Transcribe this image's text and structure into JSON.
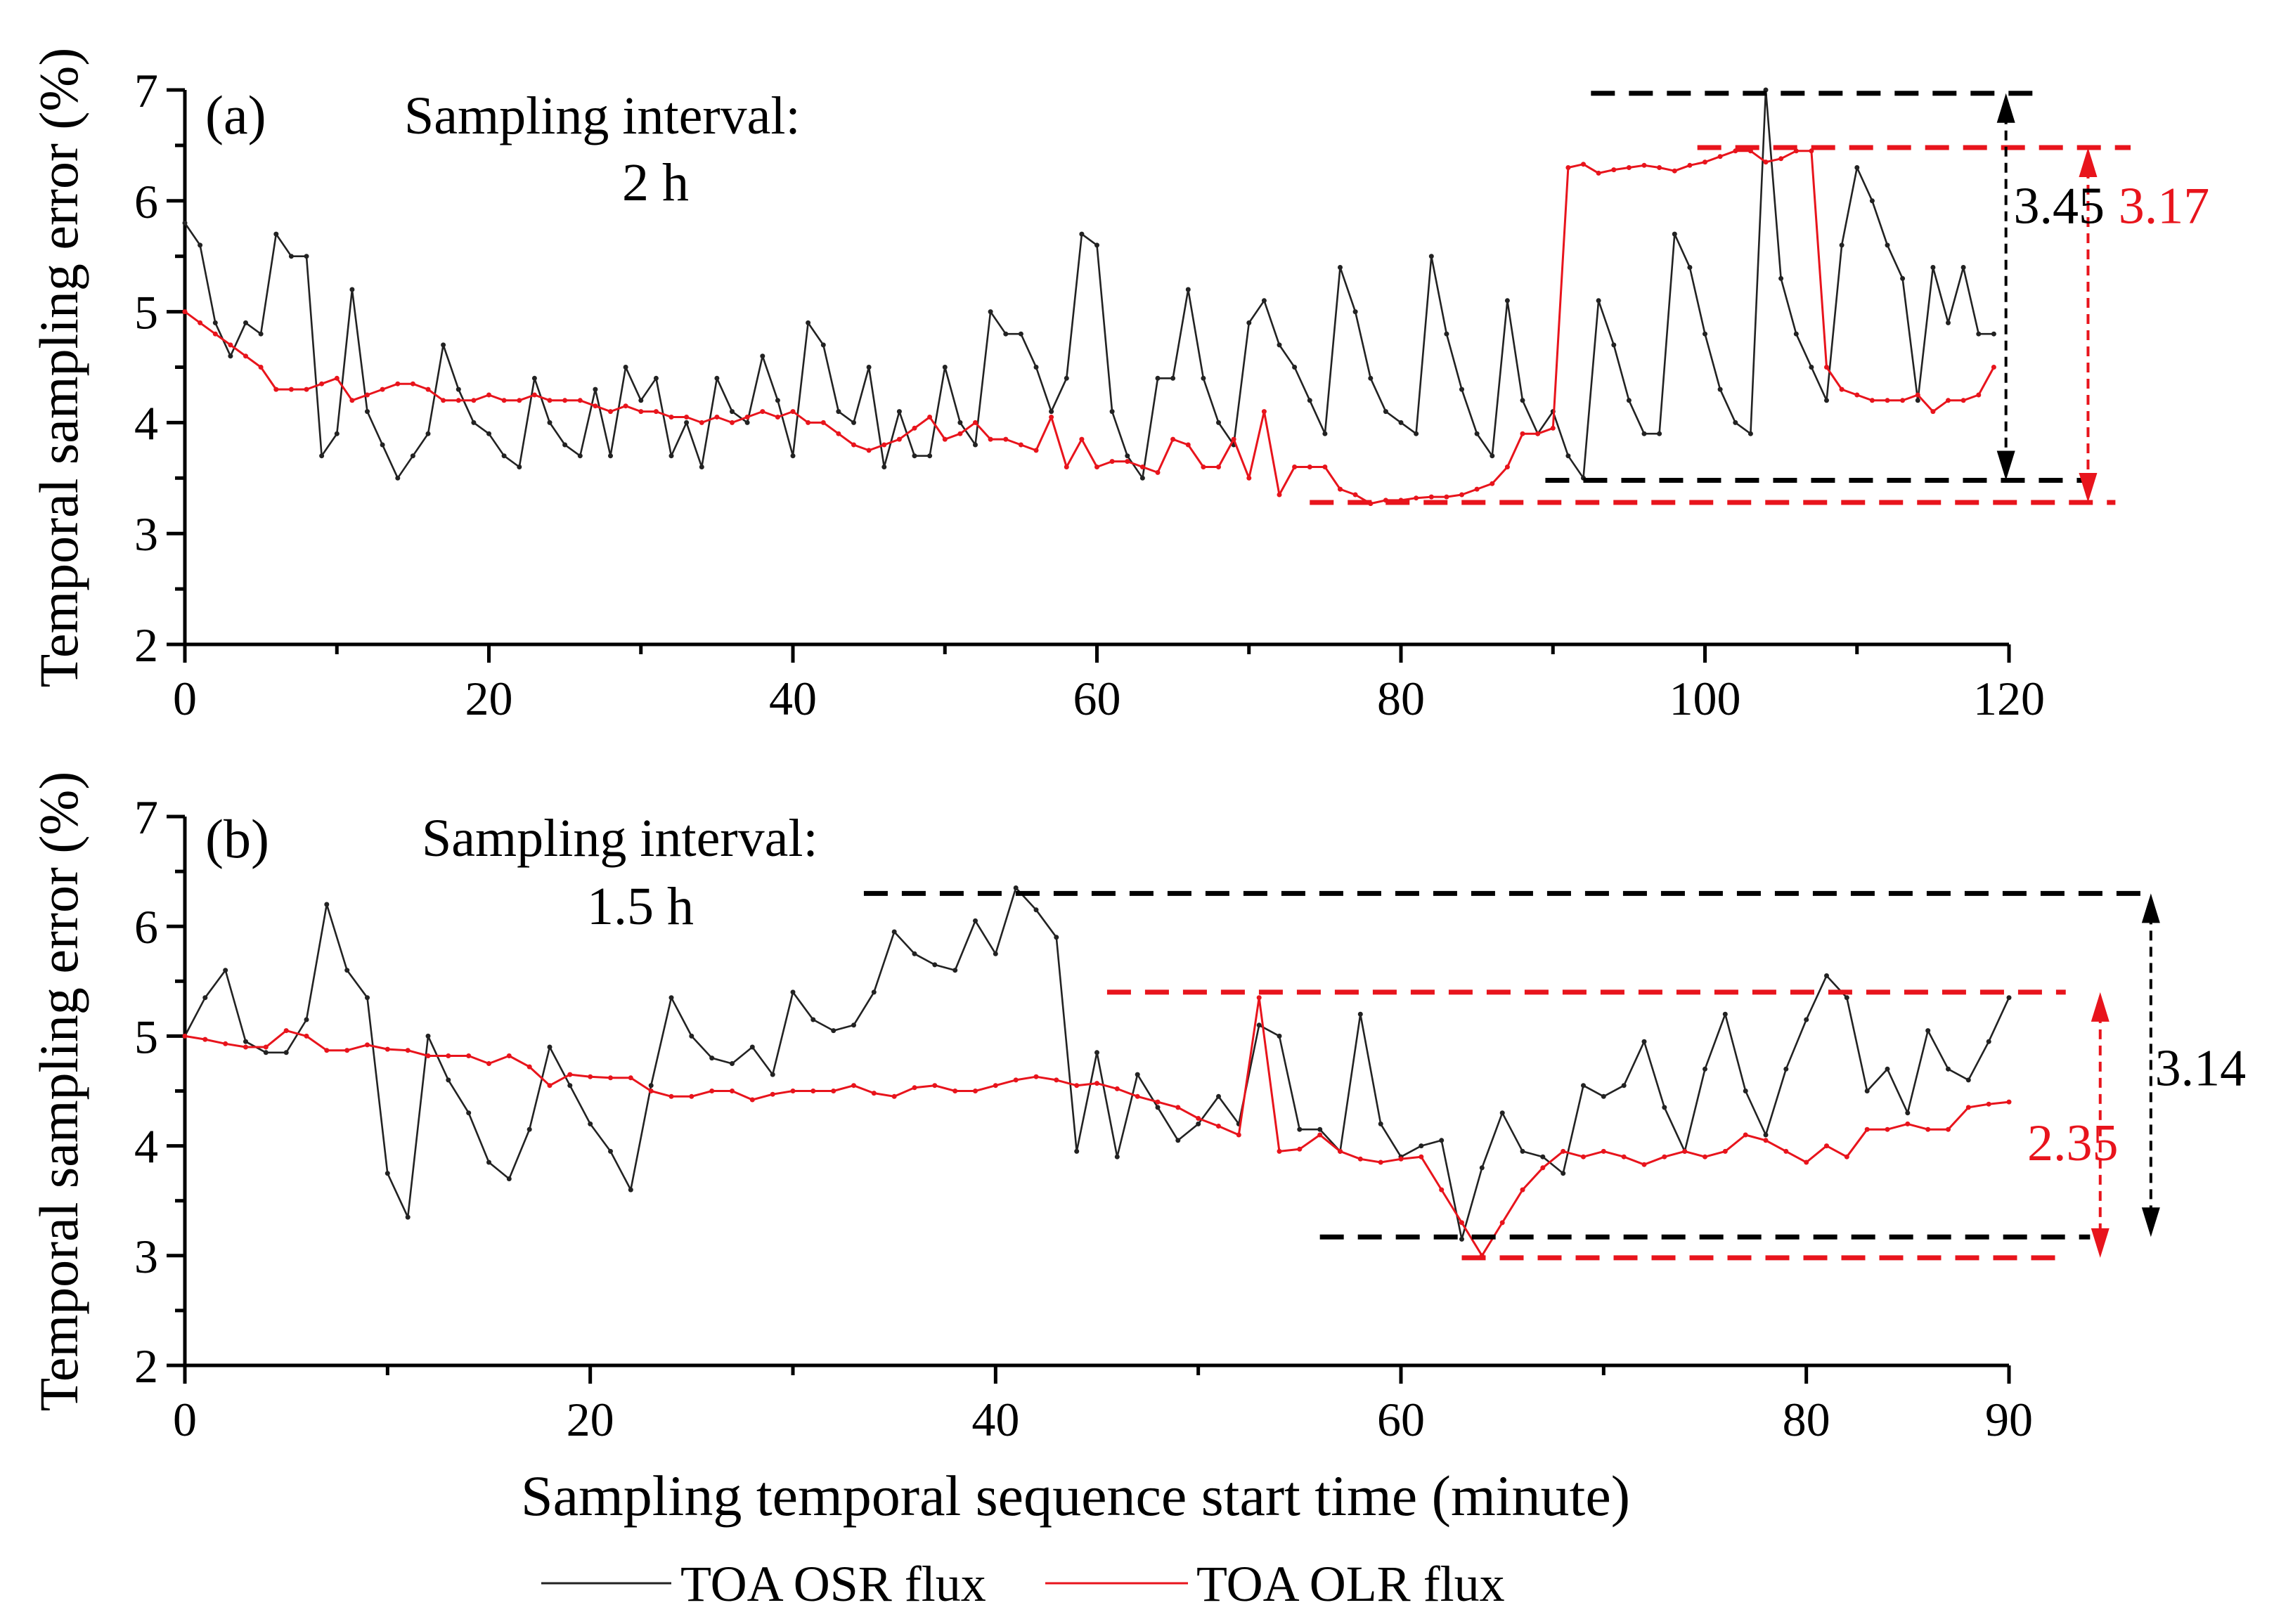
{
  "colors": {
    "osr": "#222222",
    "olr": "#e8141c",
    "axis": "#000000",
    "ann_black": "#000000",
    "ann_red": "#e8141c"
  },
  "legend": {
    "osr_label": "TOA OSR flux",
    "olr_label": "TOA OLR flux"
  },
  "xlabel": "Sampling temporal sequence start time (minute)",
  "chart_data": [
    {
      "type": "line",
      "panel_label": "(a)",
      "title_line1": "Sampling interval:",
      "title_line2": "2 h",
      "ylabel": "Temporal sampling error (%)",
      "xlim": [
        0,
        120
      ],
      "ylim": [
        2,
        7
      ],
      "xticks": [
        0,
        20,
        40,
        60,
        80,
        100,
        120
      ],
      "yticks": [
        2,
        3,
        4,
        5,
        6,
        7
      ],
      "series": [
        {
          "name": "TOA OSR flux",
          "values": [
            5.8,
            5.6,
            4.9,
            4.6,
            4.9,
            4.8,
            5.7,
            5.5,
            5.5,
            3.7,
            3.9,
            5.2,
            4.1,
            3.8,
            3.5,
            3.7,
            3.9,
            4.7,
            4.3,
            4.0,
            3.9,
            3.7,
            3.6,
            4.4,
            4.0,
            3.8,
            3.7,
            4.3,
            3.7,
            4.5,
            4.2,
            4.4,
            3.7,
            4.0,
            3.6,
            4.4,
            4.1,
            4.0,
            4.6,
            4.2,
            3.7,
            4.9,
            4.7,
            4.1,
            4.0,
            4.5,
            3.6,
            4.1,
            3.7,
            3.7,
            4.5,
            4.0,
            3.8,
            5.0,
            4.8,
            4.8,
            4.5,
            4.1,
            4.4,
            5.7,
            5.6,
            4.1,
            3.7,
            3.5,
            4.4,
            4.4,
            5.2,
            4.4,
            4.0,
            3.8,
            4.9,
            5.1,
            4.7,
            4.5,
            4.2,
            3.9,
            5.4,
            5.0,
            4.4,
            4.1,
            4.0,
            3.9,
            5.5,
            4.8,
            4.3,
            3.9,
            3.7,
            5.1,
            4.2,
            3.9,
            4.1,
            3.7,
            3.5,
            5.1,
            4.7,
            4.2,
            3.9,
            3.9,
            5.7,
            5.4,
            4.8,
            4.3,
            4.0,
            3.9,
            7.0,
            5.3,
            4.8,
            4.5,
            4.2,
            5.6,
            6.3,
            6.0,
            5.6,
            5.3,
            4.2,
            5.4,
            4.9,
            5.4,
            4.8,
            4.8
          ]
        },
        {
          "name": "TOA OLR flux",
          "values": [
            5.0,
            4.9,
            4.8,
            4.7,
            4.6,
            4.5,
            4.3,
            4.3,
            4.3,
            4.35,
            4.4,
            4.2,
            4.25,
            4.3,
            4.35,
            4.35,
            4.3,
            4.2,
            4.2,
            4.2,
            4.25,
            4.2,
            4.2,
            4.25,
            4.2,
            4.2,
            4.2,
            4.15,
            4.1,
            4.15,
            4.1,
            4.1,
            4.05,
            4.05,
            4.0,
            4.05,
            4.0,
            4.05,
            4.1,
            4.05,
            4.1,
            4.0,
            4.0,
            3.9,
            3.8,
            3.75,
            3.8,
            3.85,
            3.95,
            4.05,
            3.85,
            3.9,
            4.0,
            3.85,
            3.85,
            3.8,
            3.75,
            4.05,
            3.6,
            3.85,
            3.6,
            3.65,
            3.65,
            3.6,
            3.55,
            3.85,
            3.8,
            3.6,
            3.6,
            3.85,
            3.5,
            4.1,
            3.35,
            3.6,
            3.6,
            3.6,
            3.4,
            3.35,
            3.27,
            3.3,
            3.3,
            3.32,
            3.33,
            3.33,
            3.35,
            3.4,
            3.45,
            3.6,
            3.9,
            3.9,
            3.95,
            6.3,
            6.33,
            6.25,
            6.28,
            6.3,
            6.32,
            6.3,
            6.27,
            6.32,
            6.35,
            6.4,
            6.45,
            6.45,
            6.35,
            6.38,
            6.45,
            6.45,
            4.5,
            4.3,
            4.25,
            4.2,
            4.2,
            4.2,
            4.25,
            4.1,
            4.2,
            4.2,
            4.25,
            4.5
          ]
        }
      ],
      "annotations": [
        {
          "label": "3.45",
          "color": "black"
        },
        {
          "label": "3.17",
          "color": "red"
        }
      ]
    },
    {
      "type": "line",
      "panel_label": "(b)",
      "title_line1": "Sampling interval:",
      "title_line2": "1.5 h",
      "ylabel": "Temporal sampling error (%)",
      "xlim": [
        0,
        90
      ],
      "ylim": [
        2,
        7
      ],
      "xticks": [
        0,
        20,
        40,
        60,
        80,
        90
      ],
      "yticks": [
        2,
        3,
        4,
        5,
        6,
        7
      ],
      "series": [
        {
          "name": "TOA OSR flux",
          "values": [
            5.0,
            5.35,
            5.6,
            4.95,
            4.85,
            4.85,
            5.15,
            6.2,
            5.6,
            5.35,
            3.75,
            3.35,
            5.0,
            4.6,
            4.3,
            3.85,
            3.7,
            4.15,
            4.9,
            4.55,
            4.2,
            3.95,
            3.6,
            4.55,
            5.35,
            5.0,
            4.8,
            4.75,
            4.9,
            4.65,
            5.4,
            5.15,
            5.05,
            5.1,
            5.4,
            5.95,
            5.75,
            5.65,
            5.6,
            6.05,
            5.75,
            6.35,
            6.15,
            5.9,
            3.95,
            4.85,
            3.9,
            4.65,
            4.35,
            4.05,
            4.2,
            4.45,
            4.2,
            5.1,
            5.0,
            4.15,
            4.15,
            3.95,
            5.2,
            4.2,
            3.9,
            4.0,
            4.05,
            3.15,
            3.8,
            4.3,
            3.95,
            3.9,
            3.75,
            4.55,
            4.45,
            4.55,
            4.95,
            4.35,
            3.95,
            4.7,
            5.2,
            4.5,
            4.1,
            4.7,
            5.15,
            5.55,
            5.35,
            4.5,
            4.7,
            4.3,
            5.05,
            4.7,
            4.6,
            4.95,
            5.35
          ]
        },
        {
          "name": "TOA OLR flux",
          "values": [
            5.0,
            4.97,
            4.93,
            4.9,
            4.9,
            5.05,
            5.0,
            4.87,
            4.87,
            4.92,
            4.88,
            4.87,
            4.82,
            4.82,
            4.82,
            4.75,
            4.82,
            4.72,
            4.55,
            4.65,
            4.63,
            4.62,
            4.62,
            4.5,
            4.45,
            4.45,
            4.5,
            4.5,
            4.42,
            4.47,
            4.5,
            4.5,
            4.5,
            4.55,
            4.48,
            4.45,
            4.53,
            4.55,
            4.5,
            4.5,
            4.55,
            4.6,
            4.63,
            4.6,
            4.55,
            4.57,
            4.52,
            4.45,
            4.4,
            4.35,
            4.25,
            4.18,
            4.1,
            5.35,
            3.95,
            3.97,
            4.1,
            3.95,
            3.88,
            3.85,
            3.88,
            3.9,
            3.6,
            3.3,
            3.0,
            3.3,
            3.6,
            3.8,
            3.95,
            3.9,
            3.95,
            3.9,
            3.83,
            3.9,
            3.95,
            3.9,
            3.95,
            4.1,
            4.05,
            3.95,
            3.85,
            4.0,
            3.9,
            4.15,
            4.15,
            4.2,
            4.15,
            4.15,
            4.35,
            4.38,
            4.4
          ]
        }
      ],
      "annotations": [
        {
          "label": "3.14",
          "color": "black"
        },
        {
          "label": "2.35",
          "color": "red"
        }
      ]
    }
  ]
}
